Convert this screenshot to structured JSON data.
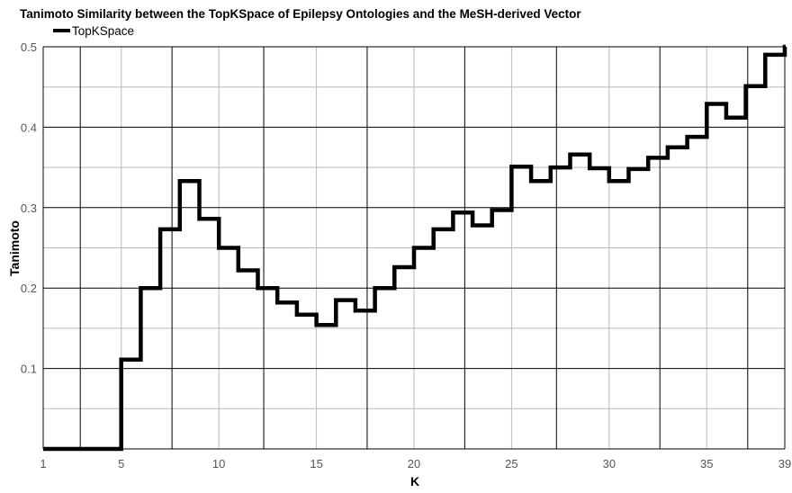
{
  "chart_data": {
    "type": "line",
    "step": true,
    "title": "Tanimoto Similarity between the TopKSpace of Epilepsy Ontologies and the MeSH-derived Vector",
    "xlabel": "K",
    "ylabel": "Tanimoto",
    "xlim": [
      1,
      39
    ],
    "ylim": [
      0,
      0.5
    ],
    "x_ticks": [
      1,
      5,
      10,
      15,
      20,
      25,
      30,
      35,
      39
    ],
    "y_ticks": [
      0.1,
      0.2,
      0.3,
      0.4,
      0.5
    ],
    "x_major_grid": [
      2.9,
      7.6,
      12.3,
      17.6,
      22.6,
      27.3,
      32.6,
      37.1
    ],
    "x_minor_grid": [
      5,
      10,
      15,
      20,
      25,
      30,
      35
    ],
    "grid": true,
    "legend": {
      "placement": "top-left"
    },
    "series": [
      {
        "name": "TopKSpace",
        "color": "#000000",
        "x": [
          1,
          5,
          6,
          7,
          8,
          9,
          10,
          11,
          12,
          13,
          14,
          15,
          16,
          17,
          18,
          19,
          20,
          21,
          22,
          23,
          24,
          25,
          26,
          27,
          28,
          29,
          30,
          31,
          32,
          33,
          34,
          35,
          36,
          37,
          38,
          39
        ],
        "values": [
          0,
          0.111,
          0.2,
          0.273,
          0.333,
          0.286,
          0.25,
          0.222,
          0.2,
          0.182,
          0.167,
          0.154,
          0.185,
          0.172,
          0.2,
          0.226,
          0.25,
          0.273,
          0.294,
          0.278,
          0.297,
          0.351,
          0.333,
          0.35,
          0.366,
          0.349,
          0.333,
          0.348,
          0.362,
          0.375,
          0.388,
          0.429,
          0.412,
          0.451,
          0.49,
          0.5
        ]
      }
    ]
  }
}
